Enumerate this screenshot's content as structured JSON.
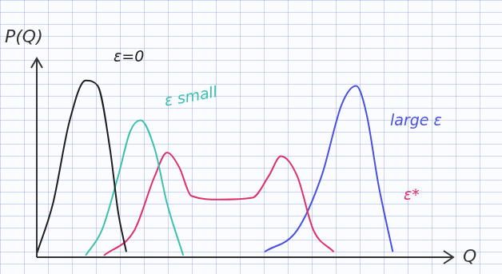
{
  "chart_data": {
    "type": "line",
    "x_label": "Q",
    "y_label": "P(Q)",
    "xlim": [
      0,
      10
    ],
    "ylim": [
      0,
      1.05
    ],
    "tick_labels": false,
    "grid": false,
    "series": [
      {
        "name": "ε=0",
        "color": "#1e1e1e",
        "x": [
          0.0,
          0.4,
          0.8,
          1.2,
          1.5,
          1.8,
          2.0,
          2.2
        ],
        "values": [
          0.02,
          0.3,
          0.75,
          0.98,
          0.95,
          0.6,
          0.25,
          0.03
        ]
      },
      {
        "name": "ε small",
        "color": "#3cc0ae",
        "x": [
          1.2,
          1.6,
          2.0,
          2.3,
          2.55,
          2.9,
          3.2,
          3.6
        ],
        "values": [
          0.01,
          0.15,
          0.45,
          0.7,
          0.76,
          0.6,
          0.3,
          0.01
        ]
      },
      {
        "name": "ε*",
        "color": "#e0306a",
        "x": [
          1.65,
          2.4,
          2.9,
          3.2,
          3.5,
          3.8,
          4.5,
          5.3,
          5.7,
          6.0,
          6.4,
          6.8,
          7.3
        ],
        "values": [
          0.01,
          0.15,
          0.45,
          0.58,
          0.5,
          0.34,
          0.32,
          0.33,
          0.45,
          0.56,
          0.45,
          0.15,
          0.03
        ]
      },
      {
        "name": "large ε",
        "color": "#4a50e0",
        "x": [
          5.6,
          6.4,
          7.0,
          7.5,
          7.85,
          8.1,
          8.4,
          8.75
        ],
        "values": [
          0.03,
          0.15,
          0.45,
          0.85,
          0.95,
          0.8,
          0.4,
          0.03
        ]
      }
    ]
  }
}
